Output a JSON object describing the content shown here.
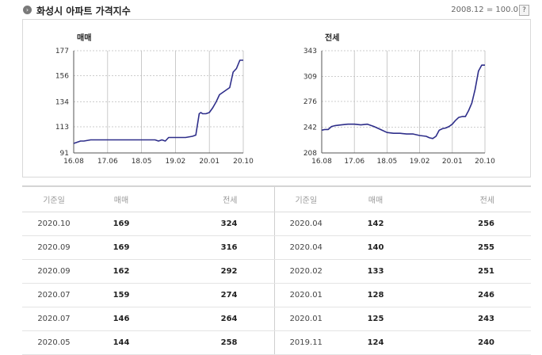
{
  "header": {
    "title": "화성시 아파트 가격지수",
    "baseline": "2008.12 = 100.0",
    "help": "?"
  },
  "chart_data": [
    {
      "type": "line",
      "title": "매매",
      "x_ticks": [
        "16.08",
        "17.06",
        "18.05",
        "19.02",
        "20.01",
        "20.10"
      ],
      "y_ticks": [
        91,
        113,
        134,
        156,
        177
      ],
      "ylim": [
        91,
        177
      ],
      "grid": true,
      "series": [
        {
          "x": [
            0,
            1,
            2,
            3,
            5,
            8,
            12,
            18,
            24,
            25,
            26,
            27,
            28,
            29,
            31,
            33,
            35,
            36,
            37,
            37.5,
            38,
            39,
            40,
            41,
            42,
            43,
            44,
            45,
            46,
            47,
            48,
            49,
            50
          ],
          "values": [
            99,
            100,
            101,
            101,
            102,
            102,
            102,
            102,
            102,
            101,
            102,
            101,
            104,
            104,
            104,
            104,
            105,
            106,
            124,
            125,
            124,
            124,
            125,
            129,
            134,
            140,
            142,
            144,
            146,
            159,
            162,
            169,
            169
          ]
        }
      ]
    },
    {
      "type": "line",
      "title": "전세",
      "x_ticks": [
        "16.08",
        "17.06",
        "18.05",
        "19.02",
        "20.01",
        "20.10"
      ],
      "y_ticks": [
        208,
        242,
        276,
        309,
        343
      ],
      "ylim": [
        208,
        343
      ],
      "grid": true,
      "series": [
        {
          "x": [
            0,
            1,
            2,
            3,
            4,
            6,
            8,
            10,
            12,
            14,
            16,
            18,
            20,
            22,
            24,
            26,
            28,
            30,
            32,
            33,
            34,
            35,
            36,
            37,
            38,
            39,
            40,
            41,
            42,
            43,
            44,
            45,
            46,
            47,
            48,
            49,
            50
          ],
          "values": [
            238,
            239,
            239,
            243,
            244,
            245,
            246,
            246,
            245,
            246,
            243,
            239,
            235,
            234,
            234,
            233,
            233,
            231,
            230,
            228,
            227,
            230,
            238,
            240,
            241,
            243,
            246,
            251,
            255,
            256,
            256,
            264,
            274,
            292,
            316,
            324,
            324
          ]
        }
      ]
    }
  ],
  "table": {
    "headers": [
      "기준일",
      "매매",
      "전세",
      "기준일",
      "매매",
      "전세"
    ],
    "rows": [
      [
        "2020.10",
        "169",
        "324",
        "2020.04",
        "142",
        "256"
      ],
      [
        "2020.09",
        "169",
        "316",
        "2020.04",
        "140",
        "255"
      ],
      [
        "2020.09",
        "162",
        "292",
        "2020.02",
        "133",
        "251"
      ],
      [
        "2020.07",
        "159",
        "274",
        "2020.01",
        "128",
        "246"
      ],
      [
        "2020.07",
        "146",
        "264",
        "2020.01",
        "125",
        "243"
      ],
      [
        "2020.05",
        "144",
        "258",
        "2019.11",
        "124",
        "240"
      ]
    ]
  },
  "colors": {
    "line": "#2e2e8a",
    "grid": "#bdbdbd",
    "axis": "#555555"
  }
}
